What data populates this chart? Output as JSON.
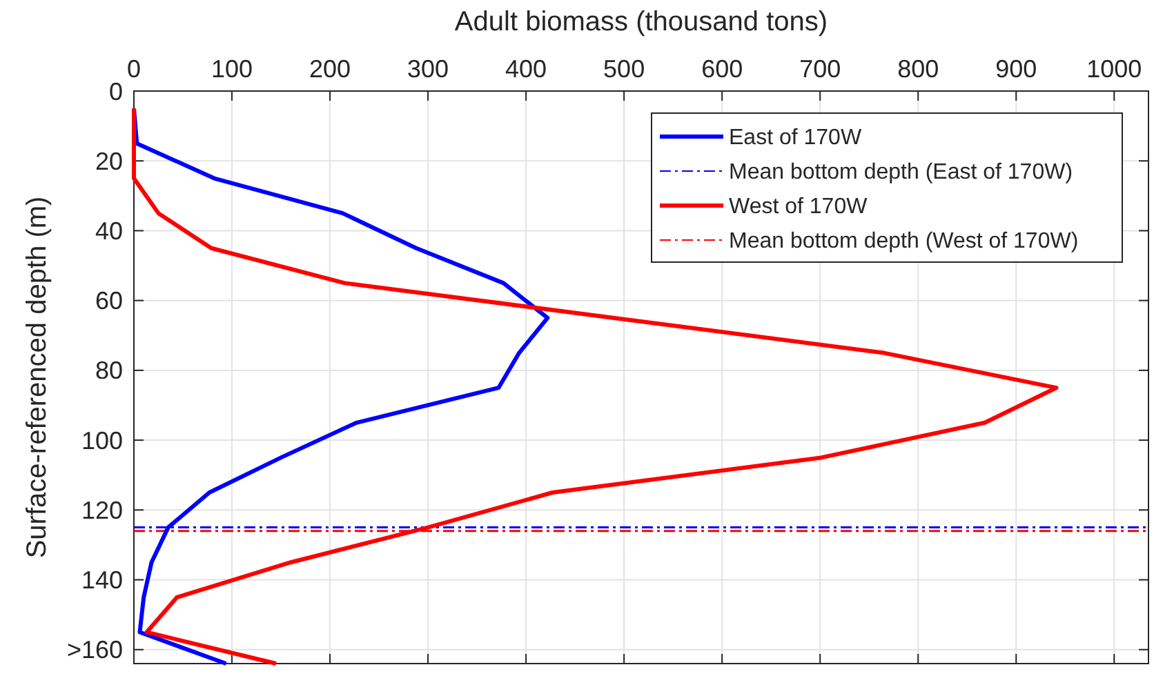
{
  "chart_data": {
    "type": "line",
    "xlabel": "Adult biomass (thousand tons)",
    "ylabel": "Surface-referenced depth (m)",
    "xlim": [
      0,
      1035
    ],
    "xticks": [
      0,
      100,
      200,
      300,
      400,
      500,
      600,
      700,
      800,
      900,
      1000
    ],
    "ylim": [
      164,
      0
    ],
    "yticks": [
      0,
      20,
      40,
      60,
      80,
      100,
      120,
      140,
      {
        "value": 160,
        "label": ">160"
      }
    ],
    "grid": true,
    "legend": "top right",
    "line_style": "solid",
    "marker": "none",
    "series": [
      {
        "name": "East of 170W",
        "color": "#0000ff",
        "x": [
          0,
          3,
          82,
          213,
          288,
          377,
          422,
          393,
          372,
          227,
          150,
          77,
          35,
          18,
          10,
          6,
          94
        ],
        "values": [
          5,
          15,
          25,
          35,
          45,
          55,
          65,
          75,
          85,
          95,
          105,
          115,
          125,
          135,
          145,
          155,
          164
        ]
      },
      {
        "name": "West of 170W",
        "color": "#ff0000",
        "x": [
          0,
          0,
          0,
          25,
          79,
          215,
          490,
          765,
          941,
          868,
          701,
          427,
          300,
          160,
          44,
          13,
          145
        ],
        "values": [
          5,
          15,
          25,
          35,
          45,
          55,
          65,
          75,
          85,
          95,
          105,
          115,
          125,
          135,
          145,
          155,
          164
        ]
      }
    ],
    "ref_lines": [
      {
        "axis": "y",
        "value": 125,
        "label": "Mean bottom depth (East of 170W)",
        "color": "#0000ff",
        "line_style": "dashdot"
      },
      {
        "axis": "y",
        "value": 126,
        "label": "Mean bottom depth (West of 170W)",
        "color": "#ff0000",
        "line_style": "dashdot"
      }
    ]
  }
}
